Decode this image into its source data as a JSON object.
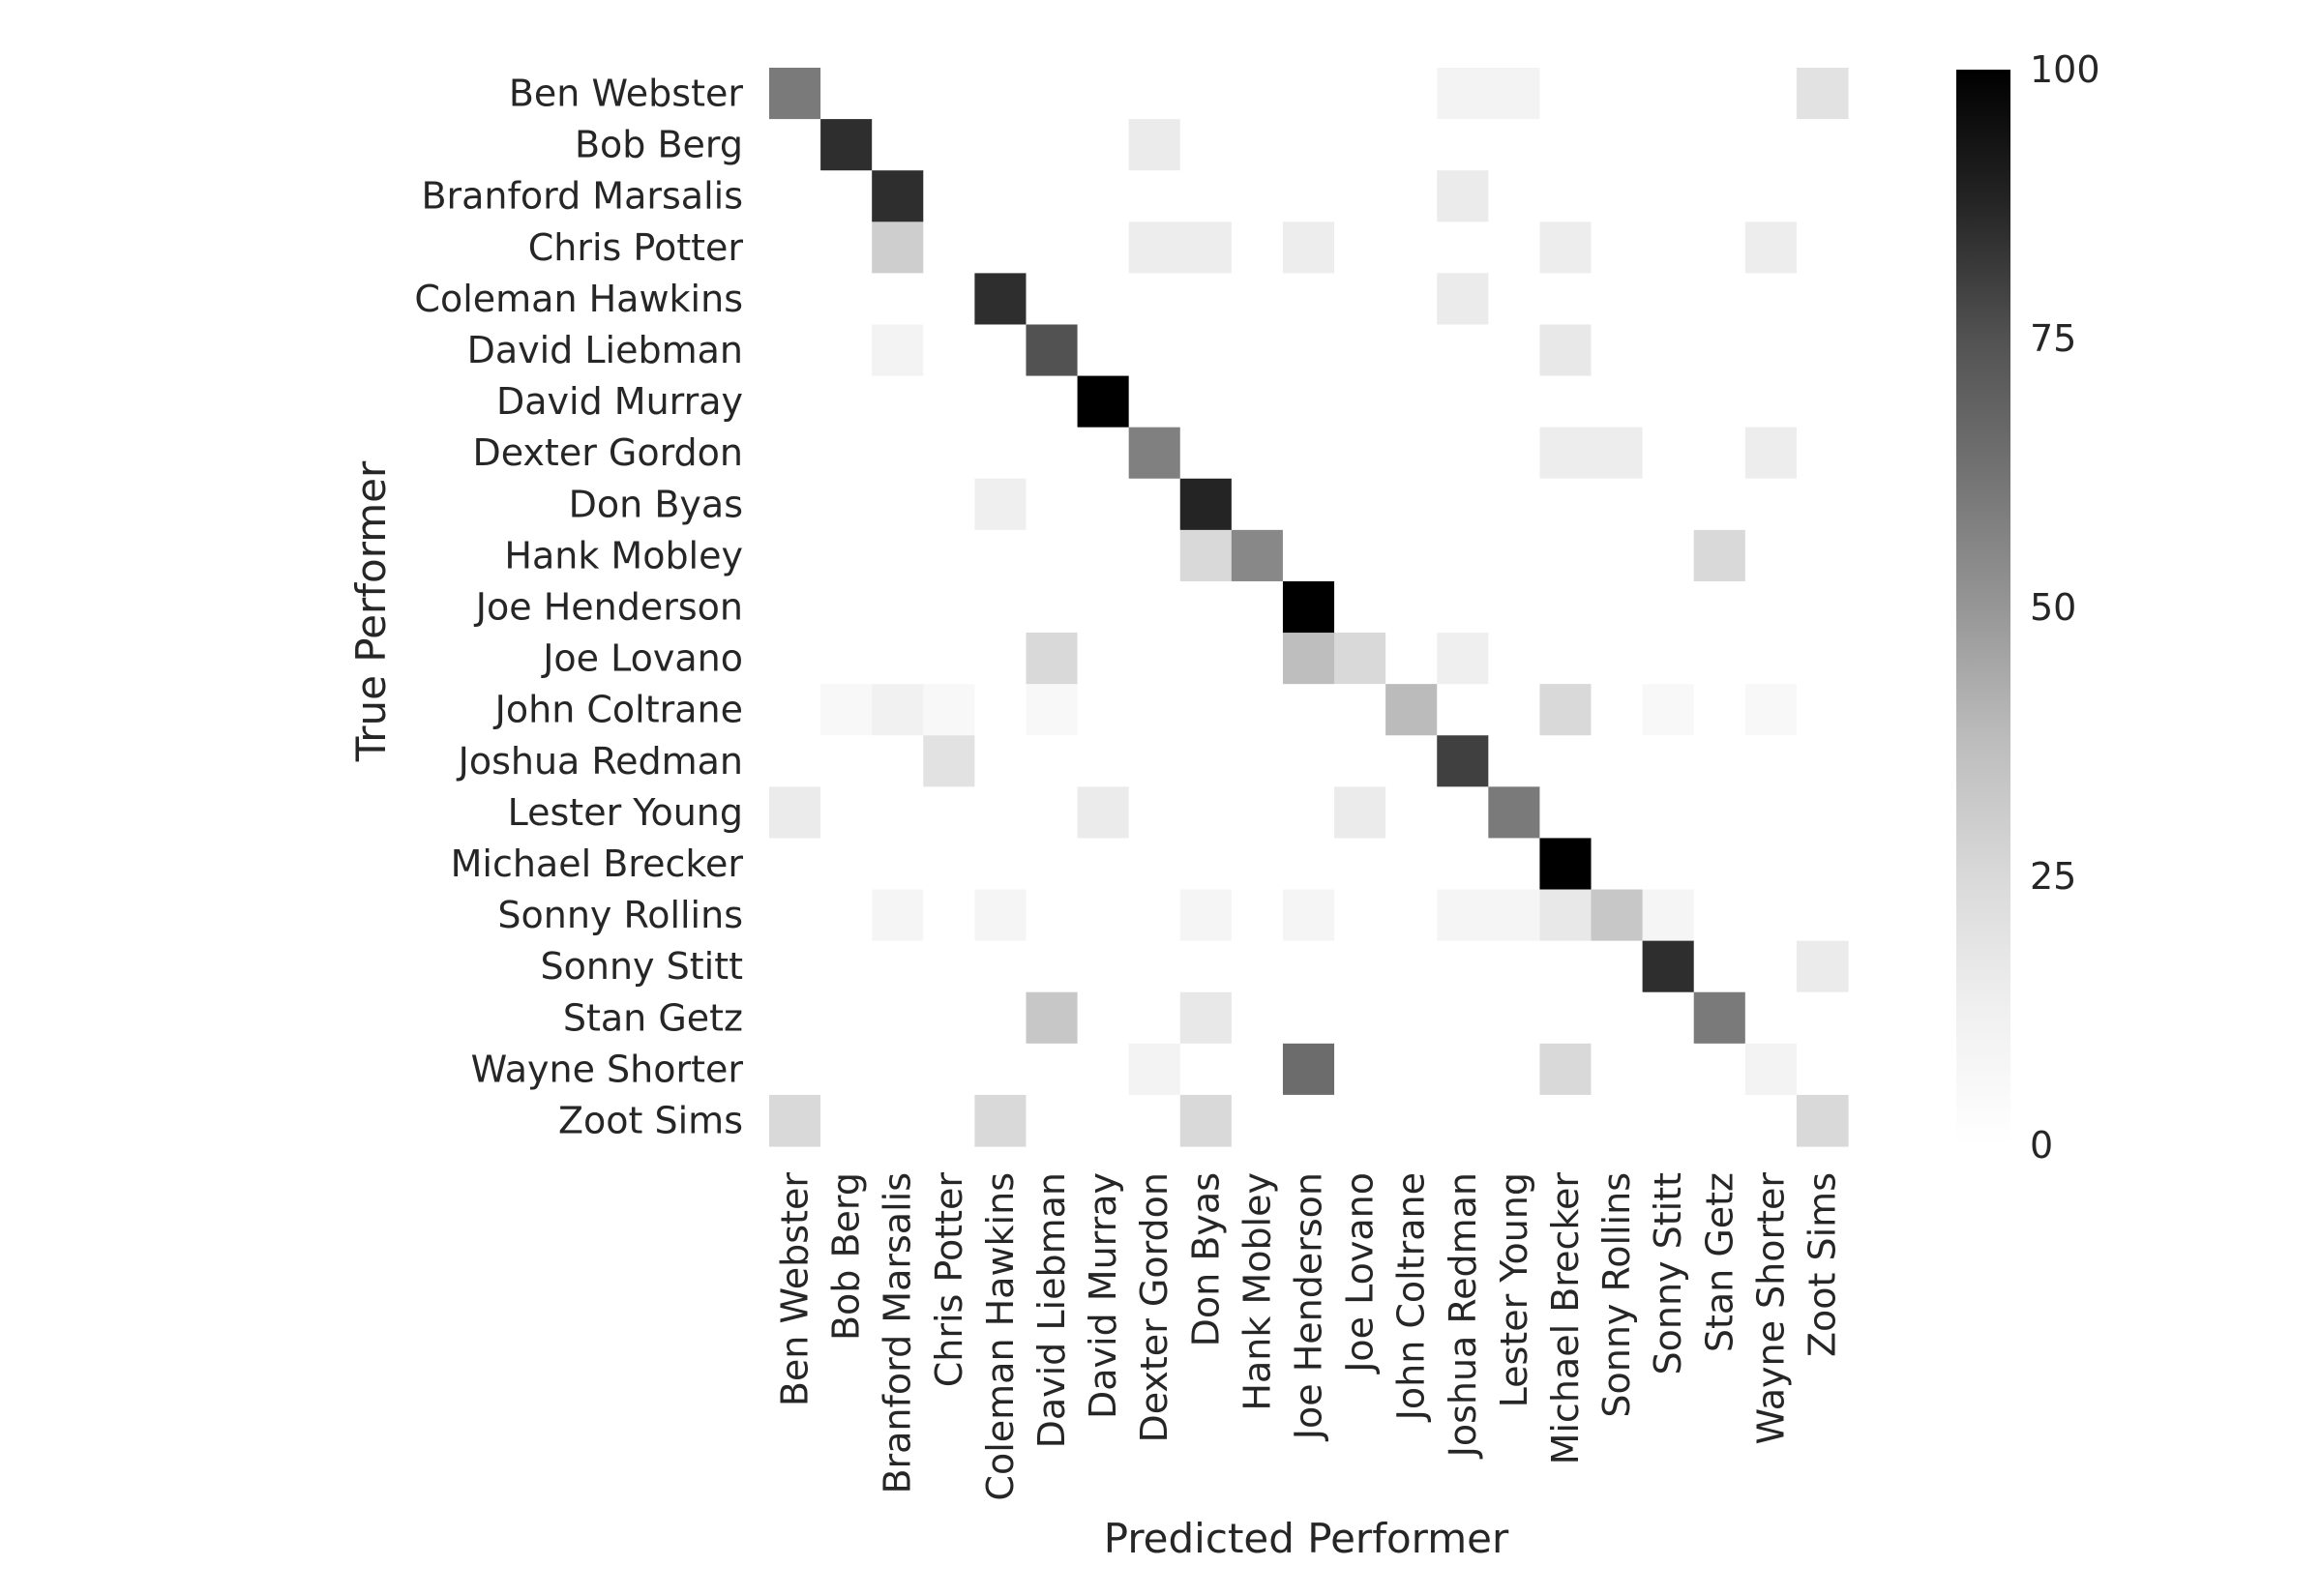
{
  "chart_data": {
    "type": "heatmap",
    "title": "",
    "xlabel": "Predicted Performer",
    "ylabel": "True Performer",
    "labels": [
      "Ben Webster",
      "Bob Berg",
      "Branford Marsalis",
      "Chris Potter",
      "Coleman Hawkins",
      "David Liebman",
      "David Murray",
      "Dexter Gordon",
      "Don Byas",
      "Hank Mobley",
      "Joe Henderson",
      "Joe Lovano",
      "John Coltrane",
      "Joshua Redman",
      "Lester Young",
      "Michael Brecker",
      "Sonny Rollins",
      "Sonny Stitt",
      "Stan Getz",
      "Wayne Shorter",
      "Zoot Sims"
    ],
    "color_range": [
      0,
      100
    ],
    "colormap": "Greys",
    "colorbar_ticks": [
      "0",
      "25",
      "50",
      "75",
      "100"
    ],
    "colorbar_tick_values": [
      0,
      25,
      50,
      75,
      100
    ],
    "matrix": [
      [
        60,
        0,
        0,
        0,
        0,
        0,
        0,
        0,
        0,
        0,
        0,
        0,
        0,
        10,
        10,
        0,
        0,
        0,
        0,
        0,
        20
      ],
      [
        0,
        85,
        0,
        0,
        0,
        0,
        0,
        15,
        0,
        0,
        0,
        0,
        0,
        0,
        0,
        0,
        0,
        0,
        0,
        0,
        0
      ],
      [
        0,
        0,
        85,
        0,
        0,
        0,
        0,
        0,
        0,
        0,
        0,
        0,
        0,
        15,
        0,
        0,
        0,
        0,
        0,
        0,
        0
      ],
      [
        0,
        0,
        30,
        0,
        0,
        0,
        0,
        14,
        14,
        0,
        14,
        0,
        0,
        0,
        0,
        14,
        0,
        0,
        0,
        14,
        0
      ],
      [
        0,
        0,
        0,
        0,
        85,
        0,
        0,
        0,
        0,
        0,
        0,
        0,
        0,
        15,
        0,
        0,
        0,
        0,
        0,
        0,
        0
      ],
      [
        0,
        0,
        10,
        0,
        0,
        75,
        0,
        0,
        0,
        0,
        0,
        0,
        0,
        0,
        0,
        17,
        0,
        0,
        0,
        0,
        0
      ],
      [
        0,
        0,
        0,
        0,
        0,
        0,
        100,
        0,
        0,
        0,
        0,
        0,
        0,
        0,
        0,
        0,
        0,
        0,
        0,
        0,
        0
      ],
      [
        0,
        0,
        0,
        0,
        0,
        0,
        0,
        58,
        0,
        0,
        0,
        0,
        0,
        0,
        0,
        14,
        14,
        0,
        0,
        14,
        0
      ],
      [
        0,
        0,
        0,
        0,
        13,
        0,
        0,
        0,
        88,
        0,
        0,
        0,
        0,
        0,
        0,
        0,
        0,
        0,
        0,
        0,
        0
      ],
      [
        0,
        0,
        0,
        0,
        0,
        0,
        0,
        0,
        25,
        55,
        0,
        0,
        0,
        0,
        0,
        0,
        0,
        0,
        25,
        0,
        0
      ],
      [
        0,
        0,
        0,
        0,
        0,
        0,
        0,
        0,
        0,
        0,
        100,
        0,
        0,
        0,
        0,
        0,
        0,
        0,
        0,
        0,
        0
      ],
      [
        0,
        0,
        0,
        0,
        0,
        25,
        0,
        0,
        0,
        0,
        37,
        25,
        0,
        13,
        0,
        0,
        0,
        0,
        0,
        0,
        0
      ],
      [
        0,
        6,
        12,
        6,
        0,
        6,
        0,
        0,
        0,
        0,
        0,
        0,
        38,
        0,
        0,
        25,
        0,
        6,
        0,
        6,
        0
      ],
      [
        0,
        0,
        0,
        20,
        0,
        0,
        0,
        0,
        0,
        0,
        0,
        0,
        0,
        80,
        0,
        0,
        0,
        0,
        0,
        0,
        0
      ],
      [
        15,
        0,
        0,
        0,
        0,
        0,
        15,
        0,
        0,
        0,
        0,
        15,
        0,
        0,
        60,
        0,
        0,
        0,
        0,
        0,
        0
      ],
      [
        0,
        0,
        0,
        0,
        0,
        0,
        0,
        0,
        0,
        0,
        0,
        0,
        0,
        0,
        0,
        100,
        0,
        0,
        0,
        0,
        0
      ],
      [
        0,
        0,
        8,
        0,
        8,
        0,
        0,
        0,
        8,
        0,
        8,
        0,
        0,
        8,
        8,
        17,
        33,
        8,
        0,
        0,
        0
      ],
      [
        0,
        0,
        0,
        0,
        0,
        0,
        0,
        0,
        0,
        0,
        0,
        0,
        0,
        0,
        0,
        0,
        0,
        85,
        0,
        0,
        15
      ],
      [
        0,
        0,
        0,
        0,
        0,
        33,
        0,
        0,
        17,
        0,
        0,
        0,
        0,
        0,
        0,
        0,
        0,
        0,
        60,
        0,
        0
      ],
      [
        0,
        0,
        0,
        0,
        0,
        0,
        0,
        10,
        0,
        0,
        65,
        0,
        0,
        0,
        0,
        25,
        0,
        0,
        0,
        10,
        0
      ],
      [
        25,
        0,
        0,
        0,
        25,
        0,
        0,
        0,
        25,
        0,
        0,
        0,
        0,
        0,
        0,
        0,
        0,
        0,
        0,
        0,
        25
      ]
    ]
  }
}
